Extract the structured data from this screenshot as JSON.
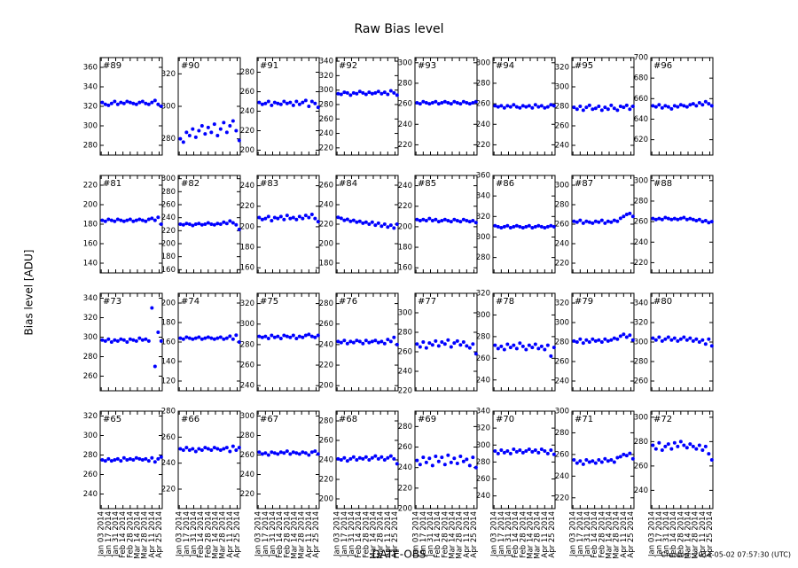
{
  "title": "Raw Bias level",
  "ylabel": "Bias level [ADU]",
  "xlabel": "DATE-OBS",
  "footer": "Created: 2014-05-02 07:57:30 (UTC)",
  "color": "#0000ff",
  "xlim": [
    "2014-01-01",
    "2014-05-01"
  ],
  "xticks": [
    {
      "value": "2014-01-03",
      "label": "Jan 03 2014"
    },
    {
      "value": "2014-01-17",
      "label": "Jan 17 2014"
    },
    {
      "value": "2014-01-31",
      "label": "Jan 31 2014"
    },
    {
      "value": "2014-02-14",
      "label": "Feb 14 2014"
    },
    {
      "value": "2014-02-28",
      "label": "Feb 28 2014"
    },
    {
      "value": "2014-03-14",
      "label": "Mar 14 2014"
    },
    {
      "value": "2014-03-28",
      "label": "Mar 28 2014"
    },
    {
      "value": "2014-04-11",
      "label": "Apr 11 2014"
    },
    {
      "value": "2014-04-25",
      "label": "Apr 25 2014"
    }
  ],
  "x": [
    "2014-01-05",
    "2014-01-11",
    "2014-01-17",
    "2014-01-23",
    "2014-01-29",
    "2014-02-04",
    "2014-02-10",
    "2014-02-16",
    "2014-02-22",
    "2014-02-28",
    "2014-03-06",
    "2014-03-12",
    "2014-03-18",
    "2014-03-24",
    "2014-03-30",
    "2014-04-05",
    "2014-04-11",
    "2014-04-17",
    "2014-04-23",
    "2014-04-29"
  ],
  "chart_data": [
    {
      "type": "scatter",
      "label": "#89",
      "ylim": [
        270,
        370
      ],
      "yticks": [
        280,
        300,
        320,
        340,
        360
      ],
      "values": [
        324,
        322,
        321,
        323,
        325,
        322,
        324,
        323,
        325,
        324,
        323,
        322,
        324,
        325,
        323,
        322,
        324,
        326,
        322,
        320
      ]
    },
    {
      "type": "scatter",
      "label": "#90",
      "ylim": [
        270,
        330
      ],
      "yticks": [
        280,
        300,
        320
      ],
      "values": [
        280,
        278,
        284,
        282,
        286,
        281,
        285,
        288,
        283,
        287,
        284,
        289,
        282,
        286,
        290,
        284,
        288,
        291,
        285,
        279
      ]
    },
    {
      "type": "scatter",
      "label": "#91",
      "ylim": [
        195,
        295
      ],
      "yticks": [
        200,
        220,
        240,
        260,
        280
      ],
      "values": [
        249,
        247,
        248,
        250,
        246,
        249,
        248,
        247,
        250,
        248,
        249,
        246,
        250,
        247,
        249,
        251,
        245,
        250,
        248,
        244
      ]
    },
    {
      "type": "scatter",
      "label": "#92",
      "ylim": [
        210,
        345
      ],
      "yticks": [
        220,
        240,
        260,
        280,
        300,
        320,
        340
      ],
      "values": [
        295,
        294,
        297,
        296,
        293,
        296,
        295,
        298,
        296,
        294,
        297,
        295,
        296,
        298,
        295,
        297,
        294,
        299,
        296,
        293
      ]
    },
    {
      "type": "scatter",
      "label": "#93",
      "ylim": [
        210,
        305
      ],
      "yticks": [
        220,
        240,
        260,
        280,
        300
      ],
      "values": [
        261,
        260,
        262,
        261,
        260,
        261,
        262,
        260,
        261,
        262,
        261,
        260,
        262,
        261,
        260,
        262,
        261,
        260,
        261,
        262
      ]
    },
    {
      "type": "scatter",
      "label": "#94",
      "ylim": [
        210,
        305
      ],
      "yticks": [
        220,
        240,
        260,
        280,
        300
      ],
      "values": [
        258,
        257,
        258,
        256,
        258,
        257,
        259,
        257,
        256,
        258,
        257,
        258,
        256,
        259,
        257,
        258,
        256,
        257,
        259,
        258
      ]
    },
    {
      "type": "scatter",
      "label": "#95",
      "ylim": [
        230,
        330
      ],
      "yticks": [
        240,
        260,
        280,
        300,
        320
      ],
      "values": [
        279,
        277,
        280,
        276,
        279,
        281,
        277,
        278,
        280,
        276,
        279,
        277,
        281,
        278,
        276,
        280,
        279,
        281,
        277,
        280
      ]
    },
    {
      "type": "scatter",
      "label": "#96",
      "ylim": [
        605,
        700
      ],
      "yticks": [
        620,
        640,
        660,
        680,
        700
      ],
      "values": [
        653,
        652,
        654,
        651,
        653,
        652,
        650,
        653,
        652,
        654,
        653,
        652,
        654,
        655,
        653,
        656,
        654,
        657,
        655,
        653
      ]
    },
    {
      "type": "scatter",
      "label": "#81",
      "ylim": [
        130,
        230
      ],
      "yticks": [
        140,
        160,
        180,
        200,
        220
      ],
      "values": [
        184,
        183,
        185,
        184,
        183,
        185,
        184,
        183,
        184,
        185,
        183,
        184,
        185,
        184,
        183,
        185,
        186,
        184,
        187,
        180
      ]
    },
    {
      "type": "scatter",
      "label": "#82",
      "ylim": [
        155,
        305
      ],
      "yticks": [
        160,
        180,
        200,
        220,
        240,
        260,
        280,
        300
      ],
      "values": [
        230,
        229,
        231,
        230,
        228,
        230,
        231,
        229,
        230,
        232,
        230,
        229,
        231,
        230,
        233,
        231,
        235,
        232,
        229,
        222
      ]
    },
    {
      "type": "scatter",
      "label": "#83",
      "ylim": [
        155,
        250
      ],
      "yticks": [
        160,
        180,
        200,
        220,
        240
      ],
      "values": [
        209,
        207,
        208,
        210,
        206,
        209,
        208,
        210,
        207,
        211,
        208,
        209,
        207,
        210,
        208,
        211,
        209,
        212,
        208,
        205
      ]
    },
    {
      "type": "scatter",
      "label": "#84",
      "ylim": [
        170,
        270
      ],
      "yticks": [
        180,
        200,
        220,
        240,
        260
      ],
      "values": [
        227,
        226,
        224,
        225,
        223,
        224,
        222,
        223,
        221,
        222,
        220,
        222,
        219,
        221,
        218,
        220,
        217,
        219,
        216,
        220
      ]
    },
    {
      "type": "scatter",
      "label": "#85",
      "ylim": [
        155,
        250
      ],
      "yticks": [
        160,
        180,
        200,
        220,
        240
      ],
      "values": [
        207,
        206,
        207,
        206,
        208,
        206,
        207,
        205,
        206,
        207,
        206,
        205,
        207,
        206,
        205,
        207,
        206,
        205,
        206,
        204
      ]
    },
    {
      "type": "scatter",
      "label": "#86",
      "ylim": [
        265,
        360
      ],
      "yticks": [
        280,
        300,
        320,
        340,
        360
      ],
      "values": [
        311,
        310,
        309,
        310,
        311,
        309,
        310,
        311,
        310,
        309,
        310,
        311,
        309,
        310,
        311,
        310,
        309,
        310,
        311,
        310
      ]
    },
    {
      "type": "scatter",
      "label": "#87",
      "ylim": [
        210,
        310
      ],
      "yticks": [
        220,
        240,
        260,
        280,
        300
      ],
      "values": [
        263,
        262,
        264,
        261,
        263,
        262,
        261,
        263,
        262,
        264,
        261,
        263,
        262,
        264,
        263,
        266,
        268,
        270,
        271,
        268
      ]
    },
    {
      "type": "scatter",
      "label": "#88",
      "ylim": [
        210,
        305
      ],
      "yticks": [
        220,
        240,
        260,
        280,
        300
      ],
      "values": [
        263,
        262,
        263,
        262,
        264,
        263,
        262,
        263,
        262,
        263,
        264,
        262,
        263,
        262,
        261,
        262,
        260,
        261,
        259,
        260
      ]
    },
    {
      "type": "scatter",
      "label": "#73",
      "ylim": [
        245,
        345
      ],
      "yticks": [
        260,
        280,
        300,
        320,
        340
      ],
      "values": [
        297,
        296,
        298,
        295,
        297,
        296,
        298,
        297,
        295,
        298,
        297,
        296,
        299,
        297,
        298,
        296,
        330,
        270,
        305,
        296
      ]
    },
    {
      "type": "scatter",
      "label": "#74",
      "ylim": [
        110,
        210
      ],
      "yticks": [
        120,
        140,
        160,
        180,
        200
      ],
      "values": [
        164,
        163,
        165,
        164,
        163,
        164,
        165,
        163,
        164,
        165,
        164,
        163,
        164,
        165,
        163,
        164,
        166,
        163,
        167,
        160
      ]
    },
    {
      "type": "scatter",
      "label": "#75",
      "ylim": [
        235,
        330
      ],
      "yticks": [
        240,
        260,
        280,
        300,
        320
      ],
      "values": [
        288,
        287,
        288,
        286,
        289,
        287,
        288,
        286,
        289,
        288,
        287,
        289,
        286,
        288,
        287,
        289,
        290,
        288,
        287,
        289
      ]
    },
    {
      "type": "scatter",
      "label": "#76",
      "ylim": [
        195,
        290
      ],
      "yticks": [
        200,
        220,
        240,
        260,
        280
      ],
      "values": [
        243,
        242,
        244,
        241,
        243,
        242,
        244,
        243,
        241,
        244,
        242,
        243,
        244,
        242,
        243,
        241,
        245,
        243,
        247,
        240
      ]
    },
    {
      "type": "scatter",
      "label": "#77",
      "ylim": [
        220,
        320
      ],
      "yticks": [
        220,
        240,
        260,
        280,
        300
      ],
      "values": [
        268,
        265,
        270,
        264,
        269,
        267,
        271,
        266,
        270,
        268,
        272,
        265,
        269,
        271,
        267,
        270,
        266,
        264,
        268,
        258
      ]
    },
    {
      "type": "scatter",
      "label": "#78",
      "ylim": [
        230,
        320
      ],
      "yticks": [
        240,
        260,
        280,
        300,
        320
      ],
      "values": [
        272,
        269,
        271,
        268,
        273,
        270,
        272,
        269,
        274,
        271,
        268,
        272,
        270,
        273,
        269,
        271,
        268,
        272,
        262,
        270
      ]
    },
    {
      "type": "scatter",
      "label": "#79",
      "ylim": [
        230,
        330
      ],
      "yticks": [
        240,
        260,
        280,
        300,
        320
      ],
      "values": [
        281,
        280,
        283,
        279,
        282,
        280,
        283,
        281,
        282,
        280,
        283,
        281,
        282,
        284,
        283,
        286,
        288,
        285,
        287,
        282
      ]
    },
    {
      "type": "scatter",
      "label": "#80",
      "ylim": [
        250,
        350
      ],
      "yticks": [
        260,
        280,
        300,
        320,
        340
      ],
      "values": [
        304,
        302,
        305,
        301,
        303,
        305,
        302,
        304,
        301,
        303,
        305,
        302,
        304,
        301,
        303,
        300,
        302,
        298,
        303,
        296
      ]
    },
    {
      "type": "scatter",
      "label": "#65",
      "ylim": [
        225,
        325
      ],
      "yticks": [
        240,
        260,
        280,
        300,
        320
      ],
      "values": [
        275,
        274,
        276,
        274,
        275,
        276,
        274,
        277,
        275,
        276,
        275,
        277,
        276,
        275,
        276,
        274,
        277,
        273,
        276,
        278
      ]
    },
    {
      "type": "scatter",
      "label": "#66",
      "ylim": [
        205,
        280
      ],
      "yticks": [
        220,
        240,
        260,
        280
      ],
      "values": [
        251,
        250,
        252,
        250,
        251,
        249,
        251,
        250,
        252,
        251,
        250,
        252,
        251,
        250,
        251,
        252,
        249,
        253,
        250,
        252
      ]
    },
    {
      "type": "scatter",
      "label": "#67",
      "ylim": [
        205,
        305
      ],
      "yticks": [
        220,
        240,
        260,
        280,
        300
      ],
      "values": [
        263,
        261,
        262,
        260,
        263,
        262,
        261,
        263,
        262,
        264,
        261,
        263,
        262,
        261,
        263,
        262,
        260,
        263,
        264,
        261
      ]
    },
    {
      "type": "scatter",
      "label": "#68",
      "ylim": [
        190,
        290
      ],
      "yticks": [
        200,
        220,
        240,
        260,
        280
      ],
      "values": [
        241,
        240,
        242,
        239,
        241,
        243,
        240,
        242,
        241,
        243,
        240,
        242,
        244,
        241,
        243,
        240,
        242,
        244,
        241,
        236
      ]
    },
    {
      "type": "scatter",
      "label": "#69",
      "ylim": [
        200,
        295
      ],
      "yticks": [
        200,
        220,
        240,
        260,
        280
      ],
      "values": [
        247,
        243,
        250,
        245,
        249,
        242,
        251,
        246,
        250,
        243,
        252,
        245,
        249,
        244,
        251,
        246,
        248,
        242,
        250,
        240
      ]
    },
    {
      "type": "scatter",
      "label": "#70",
      "ylim": [
        225,
        340
      ],
      "yticks": [
        240,
        260,
        280,
        300,
        320,
        340
      ],
      "values": [
        293,
        290,
        294,
        291,
        293,
        290,
        295,
        292,
        294,
        291,
        293,
        295,
        292,
        294,
        291,
        295,
        293,
        290,
        294,
        289
      ]
    },
    {
      "type": "scatter",
      "label": "#71",
      "ylim": [
        210,
        300
      ],
      "yticks": [
        220,
        240,
        260,
        280,
        300
      ],
      "values": [
        255,
        252,
        254,
        251,
        255,
        253,
        254,
        252,
        255,
        253,
        256,
        254,
        255,
        253,
        257,
        258,
        260,
        259,
        261,
        256
      ]
    },
    {
      "type": "scatter",
      "label": "#72",
      "ylim": [
        225,
        305
      ],
      "yticks": [
        240,
        260,
        280,
        300
      ],
      "values": [
        277,
        274,
        279,
        273,
        276,
        278,
        274,
        279,
        276,
        280,
        277,
        275,
        278,
        276,
        274,
        277,
        273,
        276,
        270,
        265
      ]
    }
  ]
}
